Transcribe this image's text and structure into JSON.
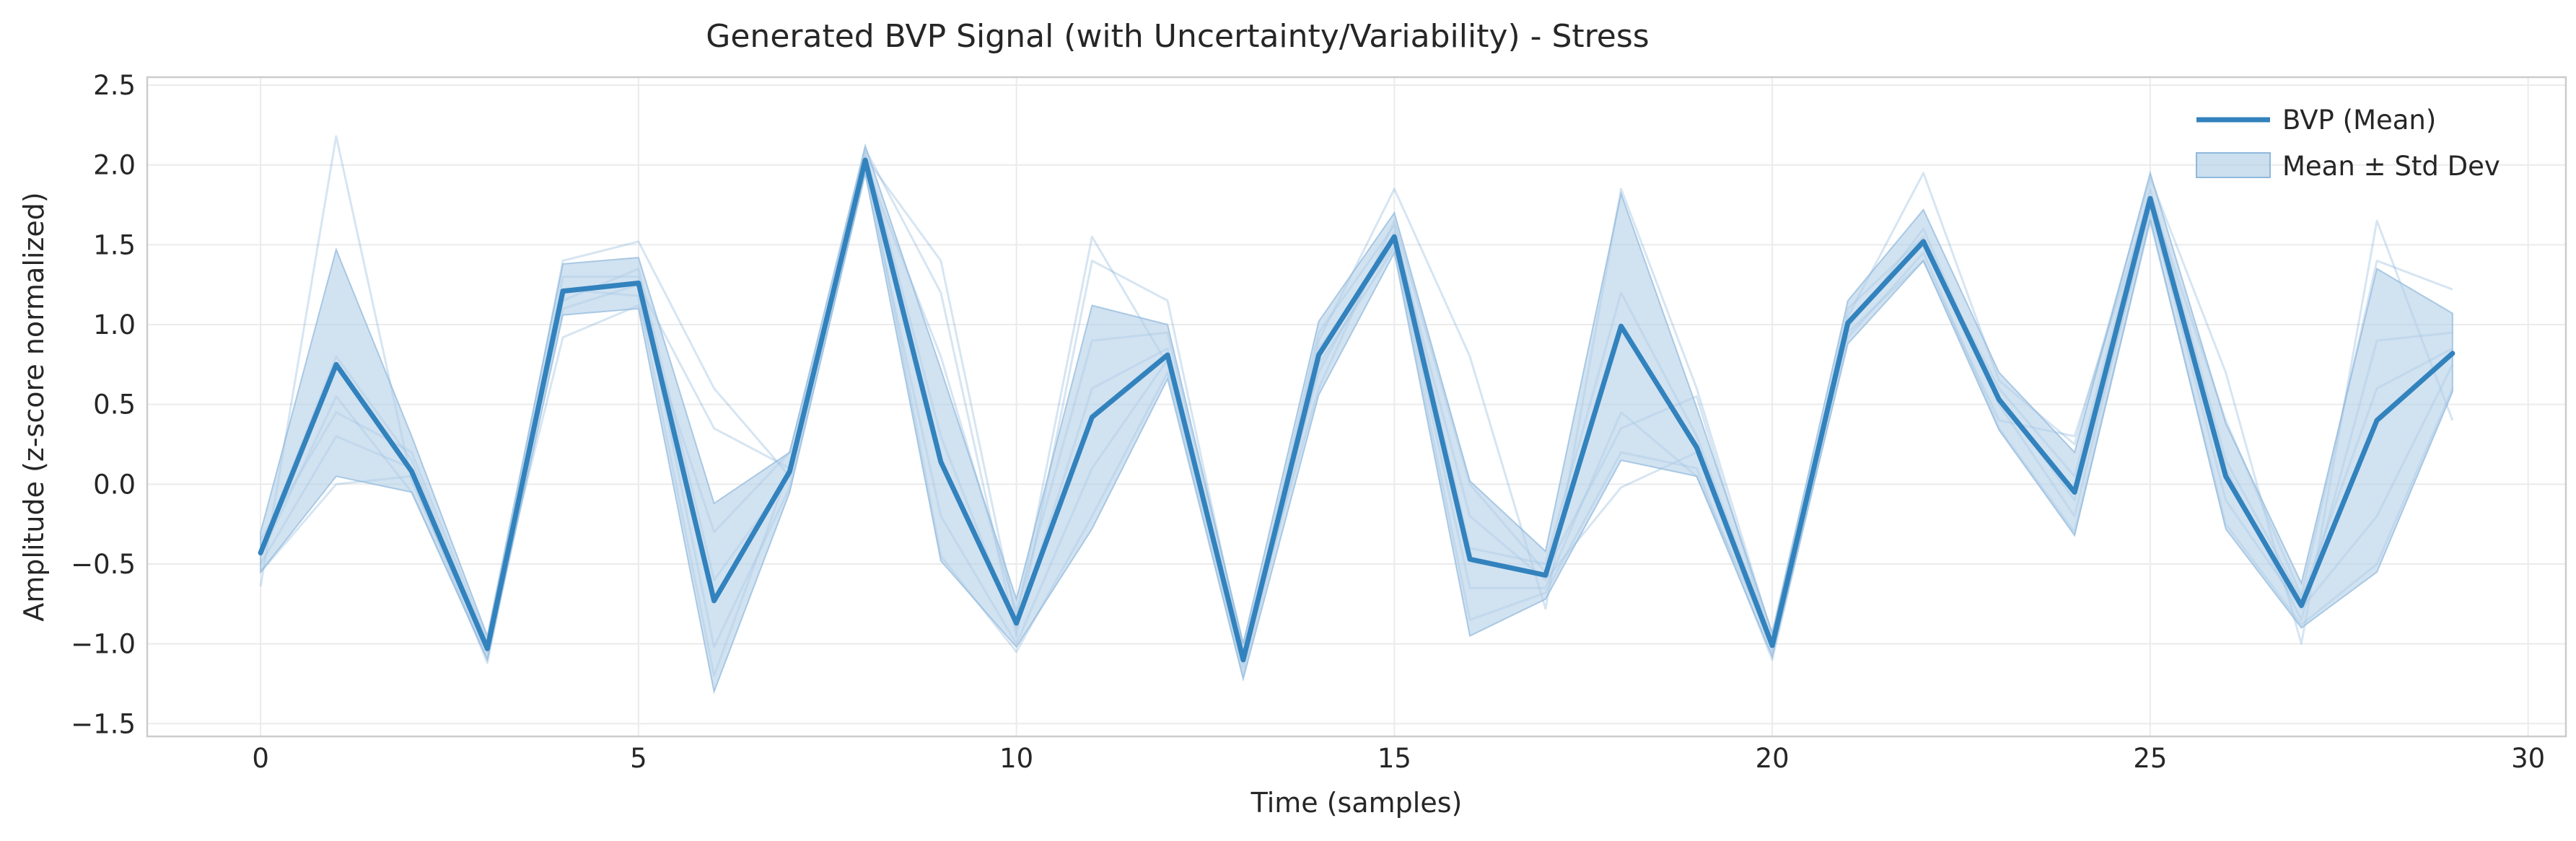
{
  "chart_data": {
    "type": "line",
    "title": "Generated BVP Signal (with Uncertainty/Variability) - Stress",
    "xlabel": "Time (samples)",
    "ylabel": "Amplitude (z-score normalized)",
    "xlim": [
      -1.5,
      30.5
    ],
    "ylim": [
      -1.58,
      2.55
    ],
    "xticks": [
      0,
      5,
      10,
      15,
      20,
      25,
      30
    ],
    "yticks": [
      -1.5,
      -1.0,
      -0.5,
      0.0,
      0.5,
      1.0,
      1.5,
      2.0,
      2.5
    ],
    "xtick_labels": [
      "0",
      "5",
      "10",
      "15",
      "20",
      "25",
      "30"
    ],
    "ytick_labels": [
      "−1.5",
      "−1.0",
      "−0.5",
      "0.0",
      "0.5",
      "1.0",
      "1.5",
      "2.0",
      "2.5"
    ],
    "grid": true,
    "legend_position": "top-right",
    "x": [
      0,
      1,
      2,
      3,
      4,
      5,
      6,
      7,
      8,
      9,
      10,
      11,
      12,
      13,
      14,
      15,
      16,
      17,
      18,
      19,
      20,
      21,
      22,
      23,
      24,
      25,
      26,
      27,
      28,
      29
    ],
    "series": [
      {
        "name": "BVP (Mean)",
        "values": [
          -0.43,
          0.75,
          0.08,
          -1.03,
          1.21,
          1.26,
          -0.73,
          0.08,
          2.03,
          0.14,
          -0.87,
          0.42,
          0.81,
          -1.1,
          0.81,
          1.55,
          -0.47,
          -0.57,
          0.99,
          0.23,
          -1.01,
          1.01,
          1.52,
          0.53,
          -0.05,
          1.79,
          0.05,
          -0.76,
          0.4,
          0.82
        ]
      }
    ],
    "band": {
      "name": "Mean ± Std Dev",
      "lower": [
        -0.55,
        0.05,
        -0.05,
        -1.1,
        1.06,
        1.1,
        -1.3,
        -0.05,
        1.95,
        -0.48,
        -1.02,
        -0.28,
        0.66,
        -1.22,
        0.56,
        1.45,
        -0.95,
        -0.72,
        0.15,
        0.05,
        -1.08,
        0.88,
        1.4,
        0.34,
        -0.32,
        1.66,
        -0.28,
        -0.9,
        -0.55,
        0.58
      ],
      "upper": [
        -0.3,
        1.47,
        0.3,
        -0.95,
        1.38,
        1.42,
        -0.12,
        0.2,
        2.12,
        0.72,
        -0.72,
        1.12,
        1.0,
        -1.0,
        1.02,
        1.7,
        0.02,
        -0.42,
        1.82,
        0.48,
        -0.93,
        1.15,
        1.72,
        0.7,
        0.2,
        1.95,
        0.38,
        -0.62,
        1.35,
        1.07
      ]
    },
    "samples": [
      [
        -0.64,
        2.18,
        0.02,
        -1.05,
        1.4,
        1.52,
        0.6,
        0.05,
        2.05,
        1.4,
        -0.85,
        1.55,
        0.75,
        -1.12,
        0.9,
        1.85,
        0.8,
        -0.78,
        1.85,
        0.6,
        -0.95,
        1.05,
        1.95,
        0.65,
        0.25,
        1.92,
        0.7,
        -1.0,
        1.65,
        0.4
      ],
      [
        -0.5,
        0.3,
        0.1,
        -1.0,
        1.1,
        1.25,
        0.35,
        0.1,
        2.1,
        1.2,
        -0.95,
        1.4,
        1.15,
        -1.05,
        0.6,
        1.65,
        0.0,
        -0.55,
        0.35,
        0.55,
        -1.0,
        0.95,
        1.4,
        0.4,
        0.3,
        1.8,
        0.4,
        -0.7,
        1.4,
        1.22
      ],
      [
        -0.35,
        0.45,
        0.2,
        -0.98,
        0.92,
        1.12,
        -0.3,
        0.2,
        2.0,
        0.8,
        -0.8,
        0.9,
        0.95,
        -1.0,
        0.7,
        1.58,
        -0.2,
        -0.6,
        -0.02,
        0.2,
        -1.05,
        1.1,
        1.55,
        0.55,
        -0.1,
        1.7,
        0.1,
        -0.85,
        0.9,
        0.95
      ],
      [
        -0.45,
        0.55,
        -0.05,
        -1.08,
        1.3,
        1.3,
        -1.02,
        -0.02,
        1.95,
        -0.2,
        -1.0,
        0.1,
        0.78,
        -1.15,
        0.85,
        1.5,
        -0.65,
        -0.65,
        0.45,
        0.05,
        -1.0,
        0.98,
        1.6,
        0.5,
        -0.2,
        1.75,
        -0.1,
        -0.78,
        -0.2,
        0.75
      ],
      [
        -0.55,
        0.0,
        0.05,
        -1.12,
        1.22,
        1.18,
        -1.2,
        0.1,
        2.05,
        -0.45,
        -1.05,
        -0.2,
        0.7,
        -1.2,
        0.75,
        1.48,
        -0.85,
        -0.68,
        0.2,
        0.1,
        -1.1,
        0.92,
        1.45,
        0.35,
        -0.3,
        1.65,
        -0.25,
        -0.88,
        -0.5,
        0.6
      ],
      [
        -0.4,
        0.8,
        0.15,
        -1.02,
        1.15,
        1.35,
        -0.6,
        0.05,
        2.08,
        0.3,
        -0.9,
        0.6,
        0.85,
        -1.08,
        0.95,
        1.62,
        -0.4,
        -0.5,
        1.2,
        0.3,
        -0.98,
        1.02,
        1.5,
        0.6,
        0.05,
        1.85,
        0.15,
        -0.72,
        0.6,
        0.85
      ]
    ],
    "colors": {
      "mean_line": "#3282bd",
      "band_fill": "#b5d1e8",
      "band_edge": "#8fb8dc",
      "sample_line": "#6aa3d1"
    }
  }
}
